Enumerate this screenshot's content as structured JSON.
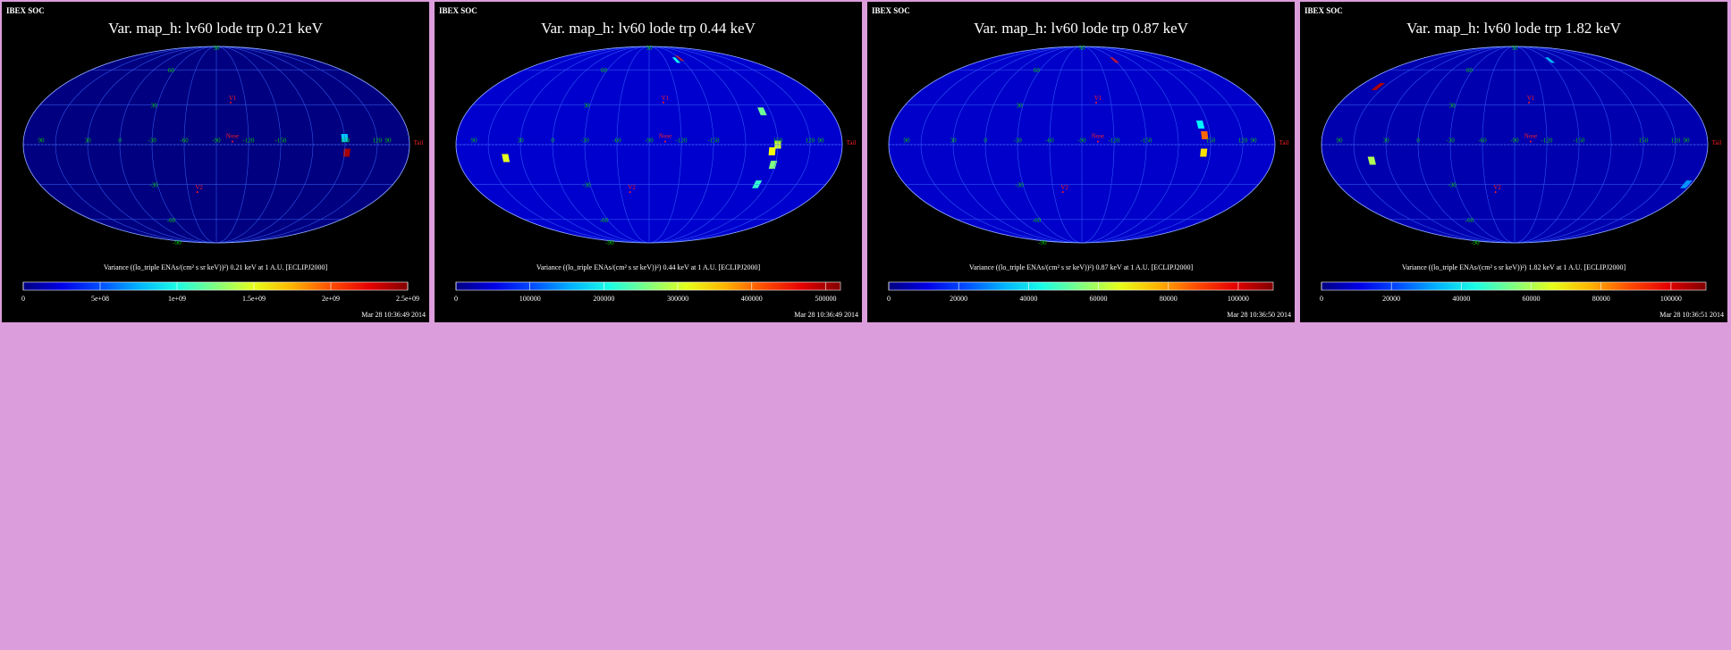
{
  "panels": [
    {
      "caption": "IBEX SOC",
      "title": "Var. map_h: lv60 lode trp 0.21 keV",
      "colorbar_label": "Variance ((lo_triple ENAs/(cm² s sr keV))²) 0.21 keV at 1 A.U. [ECLIPJ2000]",
      "timestamp": "Mar 28 10:36:49 2014",
      "colorbar_ticks": [
        "0",
        "5e+08",
        "1e+09",
        "1.5e+09",
        "2e+09",
        "2.5e+09"
      ],
      "labels": {
        "lon": [
          "90",
          "30",
          "0",
          "-30",
          "-60",
          "-90",
          "-150",
          "-120",
          "150",
          "120",
          "90"
        ],
        "lat": [
          "60",
          "30",
          "-30",
          "-60"
        ],
        "pole_top": "90",
        "pole_bottom": "-90",
        "nose": "Nose",
        "tail": "Tail",
        "v1": "V1",
        "v2": "V2"
      }
    },
    {
      "caption": "IBEX SOC",
      "title": "Var. map_h: lv60 lode trp 0.44 keV",
      "colorbar_label": "Variance ((lo_triple ENAs/(cm² s sr keV))²) 0.44 keV at 1 A.U. [ECLIPJ2000]",
      "timestamp": "Mar 28 10:36:49 2014",
      "colorbar_ticks": [
        "0",
        "100000",
        "200000",
        "300000",
        "400000",
        "500000"
      ],
      "labels": {
        "lon": [
          "90",
          "30",
          "0",
          "-30",
          "-60",
          "-90",
          "-150",
          "-120",
          "150",
          "120",
          "90"
        ],
        "lat": [
          "60",
          "30",
          "-30",
          "-60"
        ],
        "pole_top": "90",
        "pole_bottom": "-90",
        "nose": "Nose",
        "tail": "Tail",
        "v1": "V1",
        "v2": "V2"
      }
    },
    {
      "caption": "IBEX SOC",
      "title": "Var. map_h: lv60 lode trp 0.87 keV",
      "colorbar_label": "Variance ((lo_triple ENAs/(cm² s sr keV))²) 0.87 keV at 1 A.U. [ECLIPJ2000]",
      "timestamp": "Mar 28 10:36:50 2014",
      "colorbar_ticks": [
        "0",
        "20000",
        "40000",
        "60000",
        "80000",
        "100000"
      ],
      "labels": {
        "lon": [
          "90",
          "30",
          "0",
          "-30",
          "-60",
          "-90",
          "-150",
          "-120",
          "150",
          "120",
          "90"
        ],
        "lat": [
          "60",
          "30",
          "-30",
          "-60"
        ],
        "pole_top": "90",
        "pole_bottom": "-90",
        "nose": "Nose",
        "tail": "Tail",
        "v1": "V1",
        "v2": "V2"
      }
    },
    {
      "caption": "IBEX SOC",
      "title": "Var. map_h: lv60 lode trp 1.82 keV",
      "colorbar_label": "Variance ((lo_triple ENAs/(cm² s sr keV))²) 1.82 keV at 1 A.U. [ECLIPJ2000]",
      "timestamp": "Mar 28 10:36:51 2014",
      "colorbar_ticks": [
        "0",
        "20000",
        "40000",
        "60000",
        "80000",
        "100000"
      ],
      "labels": {
        "lon": [
          "90",
          "30",
          "0",
          "-30",
          "-60",
          "-90",
          "-150",
          "-120",
          "150",
          "120",
          "90"
        ],
        "lat": [
          "60",
          "30",
          "-30",
          "-60"
        ],
        "pole_top": "90",
        "pole_bottom": "-90",
        "nose": "Nose",
        "tail": "Tail",
        "v1": "V1",
        "v2": "V2"
      }
    }
  ],
  "chart_data": [
    {
      "type": "heatmap",
      "title": "Var. map_h: lv60 lode trp 0.21 keV",
      "projection": "mollweide",
      "colorbar": {
        "min": 0,
        "max": 2500000000,
        "ticks": [
          0,
          500000000,
          1000000000,
          1500000000,
          2000000000,
          2500000000
        ]
      },
      "background_value": 0,
      "hotspots": [
        {
          "lon": 150,
          "lat": 5,
          "value": 800000000
        },
        {
          "lon": 148,
          "lat": -6,
          "value": 2400000000
        }
      ]
    },
    {
      "type": "heatmap",
      "title": "Var. map_h: lv60 lode trp 0.44 keV",
      "projection": "mollweide",
      "colorbar": {
        "min": 0,
        "max": 520000,
        "ticks": [
          0,
          100000,
          200000,
          300000,
          400000,
          500000
        ]
      },
      "background_value": 40000,
      "hotspots": [
        {
          "lon": -150,
          "lat": 72,
          "value": 480000
        },
        {
          "lon": -140,
          "lat": 70,
          "value": 200000
        },
        {
          "lon": 158,
          "lat": 25,
          "value": 250000
        },
        {
          "lon": 150,
          "lat": 0,
          "value": 300000
        },
        {
          "lon": 155,
          "lat": -5,
          "value": 320000
        },
        {
          "lon": 152,
          "lat": -15,
          "value": 260000
        },
        {
          "lon": 160,
          "lat": -30,
          "value": 220000
        },
        {
          "lon": 45,
          "lat": -10,
          "value": 310000
        }
      ]
    },
    {
      "type": "heatmap",
      "title": "Var. map_h: lv60 lode trp 0.87 keV",
      "projection": "mollweide",
      "colorbar": {
        "min": 0,
        "max": 110000,
        "ticks": [
          0,
          20000,
          40000,
          60000,
          80000,
          100000
        ]
      },
      "background_value": 8000,
      "hotspots": [
        {
          "lon": -150,
          "lat": 70,
          "value": 100000
        },
        {
          "lon": 155,
          "lat": 7,
          "value": 85000
        },
        {
          "lon": 156,
          "lat": -6,
          "value": 72000
        },
        {
          "lon": 157,
          "lat": 15,
          "value": 40000
        }
      ]
    },
    {
      "type": "heatmap",
      "title": "Var. map_h: lv60 lode trp 1.82 keV",
      "projection": "mollweide",
      "colorbar": {
        "min": 0,
        "max": 110000,
        "ticks": [
          0,
          20000,
          40000,
          60000,
          80000,
          100000
        ]
      },
      "background_value": 5000,
      "hotspots": [
        {
          "lon": 68,
          "lat": 45,
          "value": 105000
        },
        {
          "lon": -155,
          "lat": 70,
          "value": 35000
        },
        {
          "lon": 45,
          "lat": -12,
          "value": 60000
        },
        {
          "lon": 95,
          "lat": -30,
          "value": 30000
        }
      ]
    }
  ],
  "colors": {
    "page_background": "#dc9ddc",
    "panel_background": "#000000",
    "grid": "#3d6bff",
    "grid_label": "#00c800",
    "marker": "#ff2020",
    "text": "#ffffff"
  }
}
